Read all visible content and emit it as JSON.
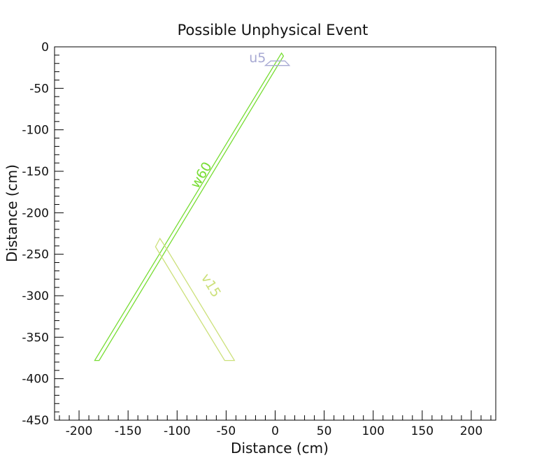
{
  "chart_data": {
    "type": "scatter",
    "title": "Possible Unphysical Event",
    "xlabel": "Distance (cm)",
    "ylabel": "Distance (cm)",
    "xlim": [
      -225,
      225
    ],
    "ylim": [
      -450,
      0
    ],
    "x_ticks": [
      -200,
      -150,
      -100,
      -50,
      0,
      50,
      100,
      150,
      200
    ],
    "x_tick_labels": [
      "-200",
      "-150",
      "-100",
      "-50",
      "0",
      "50",
      "100",
      "150",
      "200"
    ],
    "y_ticks": [
      0,
      -50,
      -100,
      -150,
      -200,
      -250,
      -300,
      -350,
      -400,
      -450
    ],
    "y_tick_labels": [
      "0",
      "-50",
      "-100",
      "-150",
      "-200",
      "-250",
      "-300",
      "-350",
      "-400",
      "-450"
    ],
    "grid": false,
    "series": [
      {
        "name": "w60",
        "color": "#77dd33",
        "polygon": [
          [
            -179.5,
            -378
          ],
          [
            -184,
            -378
          ],
          [
            6.5,
            -7.5
          ],
          [
            8.5,
            -11
          ]
        ],
        "label_at": [
          -75,
          -155
        ]
      },
      {
        "name": "v15",
        "color": "#cce07a",
        "polygon": [
          [
            -117.5,
            -231
          ],
          [
            -112.5,
            -240
          ],
          [
            -41.5,
            -378
          ],
          [
            -51.5,
            -378
          ],
          [
            -122,
            -241
          ]
        ],
        "label_at": [
          -66,
          -288
        ]
      },
      {
        "name": "u5",
        "color": "#a7a9d3",
        "polygon": [
          [
            -10,
            -22.5
          ],
          [
            14.5,
            -22.5
          ],
          [
            10,
            -17
          ],
          [
            -4.5,
            -17
          ]
        ],
        "label_at": [
          -18,
          -14
        ]
      }
    ]
  }
}
